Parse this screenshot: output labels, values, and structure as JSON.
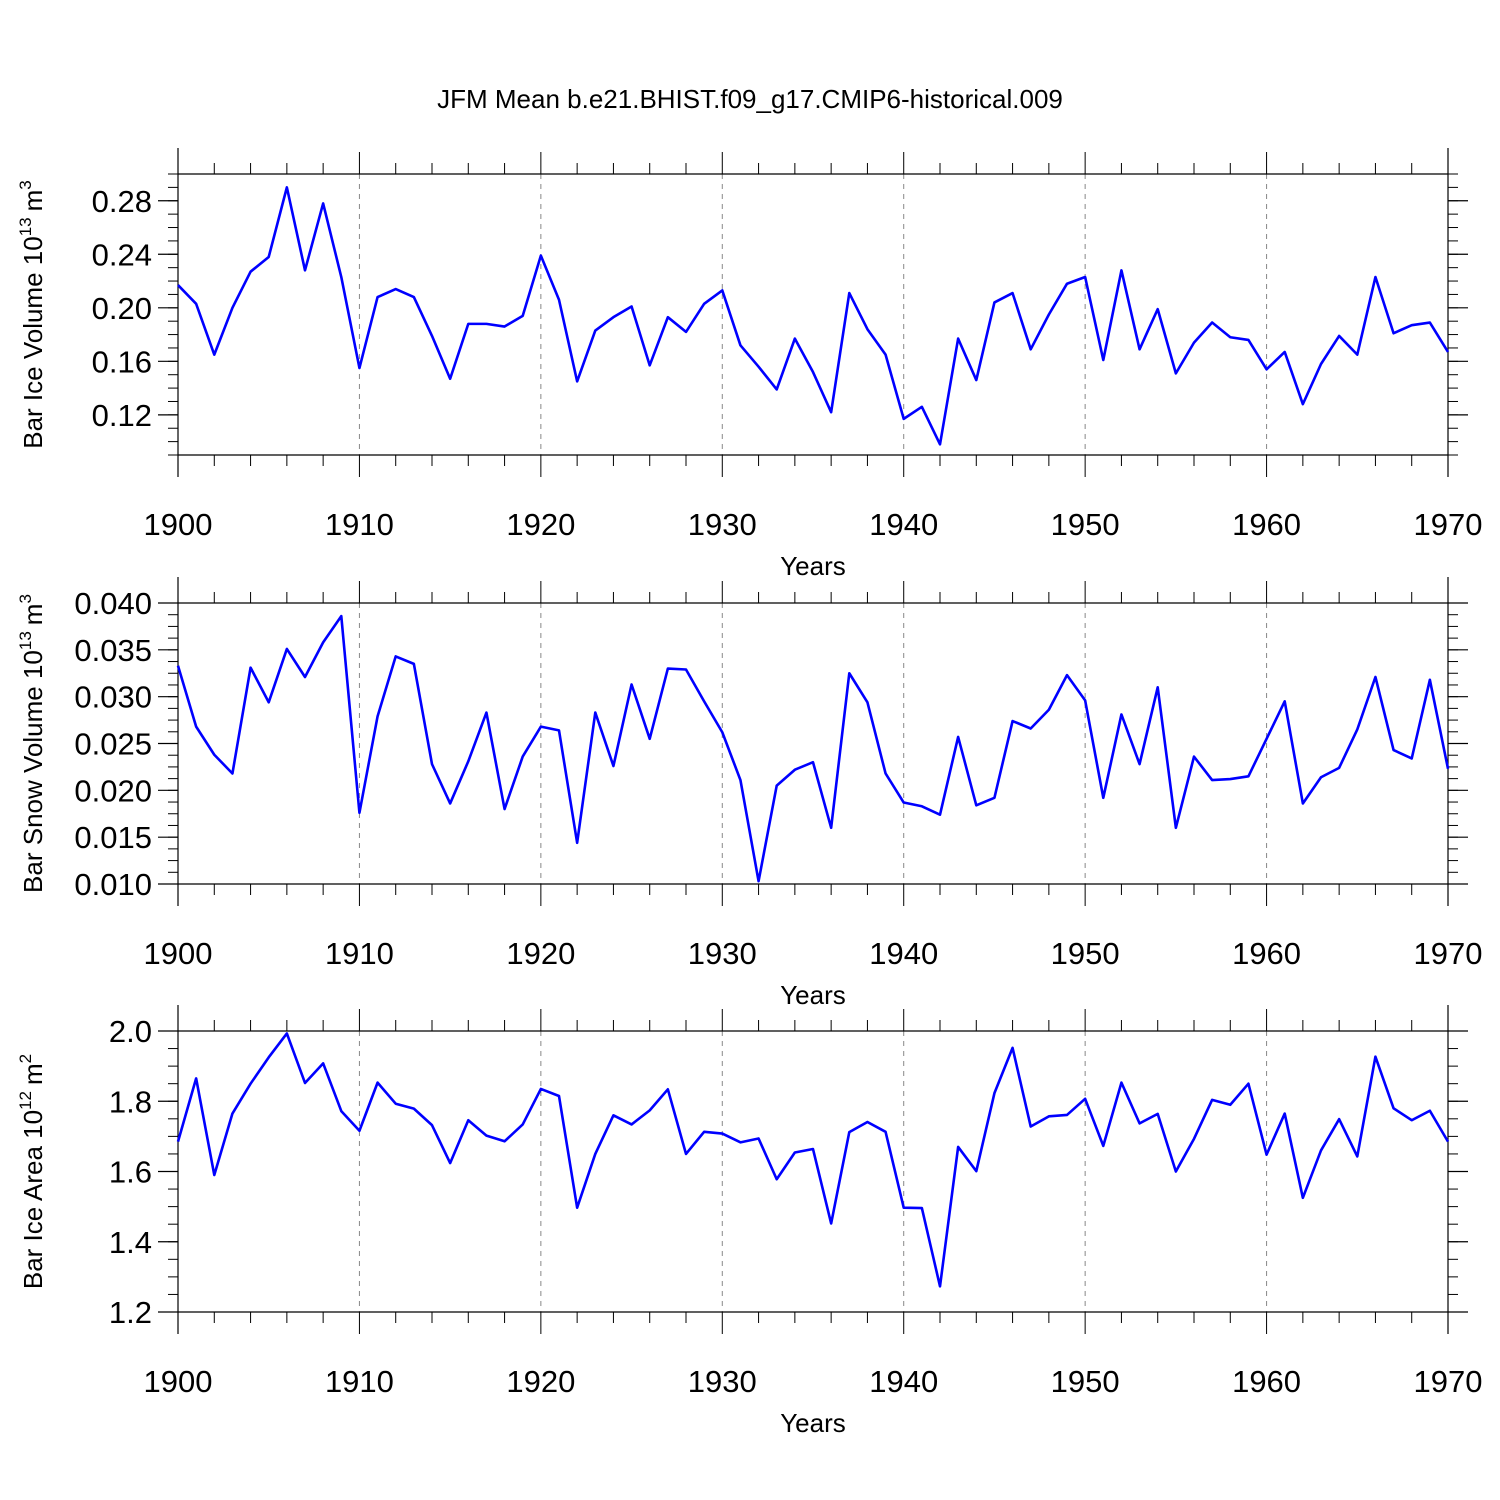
{
  "title": "JFM Mean b.e21.BHIST.f09_g17.CMIP6-historical.009",
  "colors": {
    "series": "#0000ff",
    "axis": "#000000",
    "grid": "#888888"
  },
  "chart_data": [
    {
      "type": "line",
      "title": "",
      "xlabel": "Years",
      "ylabel_main": "Bar Ice Volume 10",
      "ylabel_exp": "13",
      "ylabel_unit": "m",
      "ylabel_unit_exp": "3",
      "xlim": [
        1900,
        1970
      ],
      "ylim": [
        0.09,
        0.3
      ],
      "yticks": [
        0.12,
        0.16,
        0.2,
        0.24,
        0.28
      ],
      "ytick_labels": [
        "0.12",
        "0.16",
        "0.20",
        "0.24",
        "0.28"
      ],
      "xticks": [
        1900,
        1910,
        1920,
        1930,
        1940,
        1950,
        1960,
        1970
      ],
      "xtick_labels": [
        "1900",
        "1910",
        "1920",
        "1930",
        "1940",
        "1950",
        "1960",
        "1970"
      ],
      "x_start": 1900,
      "series": [
        {
          "name": "Bar Ice Volume",
          "values": [
            0.217,
            0.203,
            0.165,
            0.2,
            0.227,
            0.238,
            0.29,
            0.228,
            0.278,
            0.223,
            0.155,
            0.208,
            0.214,
            0.208,
            0.179,
            0.147,
            0.188,
            0.188,
            0.186,
            0.194,
            0.239,
            0.206,
            0.145,
            0.183,
            0.193,
            0.201,
            0.157,
            0.193,
            0.182,
            0.203,
            0.213,
            0.172,
            0.156,
            0.139,
            0.177,
            0.152,
            0.122,
            0.211,
            0.184,
            0.165,
            0.117,
            0.126,
            0.098,
            0.177,
            0.146,
            0.204,
            0.211,
            0.169,
            0.195,
            0.218,
            0.223,
            0.161,
            0.228,
            0.169,
            0.199,
            0.151,
            0.174,
            0.189,
            0.178,
            0.176,
            0.154,
            0.167,
            0.128,
            0.158,
            0.179,
            0.165,
            0.223,
            0.181,
            0.187,
            0.189,
            0.167
          ]
        }
      ]
    },
    {
      "type": "line",
      "title": "",
      "xlabel": "Years",
      "ylabel_main": "Bar Snow Volume 10",
      "ylabel_exp": "13",
      "ylabel_unit": "m",
      "ylabel_unit_exp": "3",
      "xlim": [
        1900,
        1970
      ],
      "ylim": [
        0.01,
        0.04
      ],
      "yticks": [
        0.01,
        0.015,
        0.02,
        0.025,
        0.03,
        0.035,
        0.04
      ],
      "ytick_labels": [
        "0.010",
        "0.015",
        "0.020",
        "0.025",
        "0.030",
        "0.035",
        "0.040"
      ],
      "xticks": [
        1900,
        1910,
        1920,
        1930,
        1940,
        1950,
        1960,
        1970
      ],
      "xtick_labels": [
        "1900",
        "1910",
        "1920",
        "1930",
        "1940",
        "1950",
        "1960",
        "1970"
      ],
      "x_start": 1900,
      "series": [
        {
          "name": "Bar Snow Volume",
          "values": [
            0.0333,
            0.0268,
            0.0238,
            0.0218,
            0.0331,
            0.0294,
            0.0351,
            0.0321,
            0.0358,
            0.0386,
            0.0176,
            0.0279,
            0.0343,
            0.0335,
            0.0228,
            0.0186,
            0.0231,
            0.0283,
            0.018,
            0.0236,
            0.0268,
            0.0264,
            0.0144,
            0.0283,
            0.0226,
            0.0313,
            0.0255,
            0.033,
            0.0329,
            0.0295,
            0.0262,
            0.0211,
            0.0103,
            0.0205,
            0.0222,
            0.023,
            0.016,
            0.0325,
            0.0294,
            0.0218,
            0.0187,
            0.0183,
            0.0174,
            0.0257,
            0.0184,
            0.0192,
            0.0274,
            0.0266,
            0.0286,
            0.0323,
            0.0296,
            0.0192,
            0.0281,
            0.0228,
            0.031,
            0.016,
            0.0236,
            0.0211,
            0.0212,
            0.0215,
            0.0255,
            0.0295,
            0.0186,
            0.0214,
            0.0224,
            0.0265,
            0.0321,
            0.0243,
            0.0234,
            0.0318,
            0.0223
          ]
        }
      ]
    },
    {
      "type": "line",
      "title": "",
      "xlabel": "Years",
      "ylabel_main": "Bar Ice Area 10",
      "ylabel_exp": "12",
      "ylabel_unit": "m",
      "ylabel_unit_exp": "2",
      "xlim": [
        1900,
        1970
      ],
      "ylim": [
        1.2,
        2.0
      ],
      "yticks": [
        1.2,
        1.4,
        1.6,
        1.8,
        2.0
      ],
      "ytick_labels": [
        "1.2",
        "1.4",
        "1.6",
        "1.8",
        "2.0"
      ],
      "xticks": [
        1900,
        1910,
        1920,
        1930,
        1940,
        1950,
        1960,
        1970
      ],
      "xtick_labels": [
        "1900",
        "1910",
        "1920",
        "1930",
        "1940",
        "1950",
        "1960",
        "1970"
      ],
      "x_start": 1900,
      "series": [
        {
          "name": "Bar Ice Area",
          "values": [
            1.685,
            1.865,
            1.59,
            1.765,
            1.85,
            1.925,
            1.993,
            1.852,
            1.908,
            1.772,
            1.716,
            1.853,
            1.793,
            1.779,
            1.732,
            1.624,
            1.746,
            1.702,
            1.686,
            1.734,
            1.835,
            1.815,
            1.497,
            1.65,
            1.76,
            1.734,
            1.774,
            1.834,
            1.65,
            1.713,
            1.708,
            1.683,
            1.694,
            1.578,
            1.654,
            1.664,
            1.452,
            1.712,
            1.741,
            1.713,
            1.497,
            1.496,
            1.273,
            1.67,
            1.601,
            1.823,
            1.952,
            1.728,
            1.757,
            1.761,
            1.807,
            1.673,
            1.853,
            1.737,
            1.764,
            1.6,
            1.693,
            1.804,
            1.79,
            1.85,
            1.648,
            1.765,
            1.525,
            1.66,
            1.749,
            1.643,
            1.927,
            1.78,
            1.746,
            1.773,
            1.685
          ]
        }
      ]
    }
  ]
}
